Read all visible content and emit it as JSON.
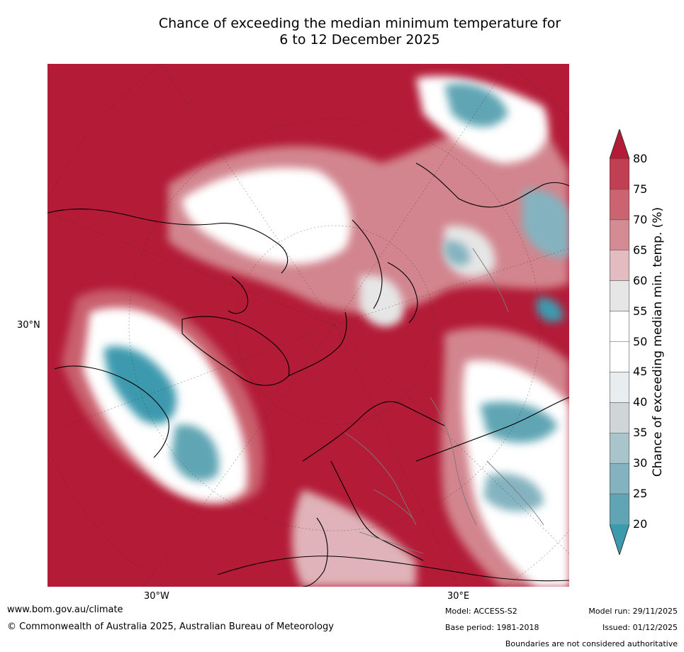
{
  "title_line1": "Chance of exceeding the median minimum temperature for",
  "title_line2": "6 to 12 December 2025",
  "graticule_labels": {
    "lat_30n": "30°N",
    "lon_30w": "30°W",
    "lon_30e": "30°E"
  },
  "colorbar": {
    "title": "Chance of exceeding median min. temp. (%)",
    "ticks": [
      "80",
      "75",
      "70",
      "65",
      "60",
      "55",
      "50",
      "45",
      "40",
      "35",
      "30",
      "25",
      "20"
    ],
    "colors_top_to_bottom": [
      "#b31b37",
      "#c13f52",
      "#cb6370",
      "#d48b93",
      "#e2bcc0",
      "#e6e6e6",
      "#ffffff",
      "#ffffff",
      "#e8edef",
      "#d0d6d8",
      "#a9c4ca",
      "#84b3bf",
      "#60a5b4",
      "#3c9aae"
    ],
    "extend": "both"
  },
  "map": {
    "projection": "north-polar-stereographic",
    "background_color": "#b31b37",
    "dominant_color": "#b31b37",
    "cool_color": "#3c9aae",
    "neutral_color": "#ffffff"
  },
  "footer": {
    "website": "www.bom.gov.au/climate",
    "copyright": "© Commonwealth of Australia 2025, Australian Bureau of Meteorology",
    "model": "Model: ACCESS-S2",
    "base_period": "Base period: 1981-2018",
    "model_run": "Model run: 29/11/2025",
    "issued": "Issued: 01/12/2025",
    "disclaimer": "Boundaries are not considered authoritative"
  }
}
